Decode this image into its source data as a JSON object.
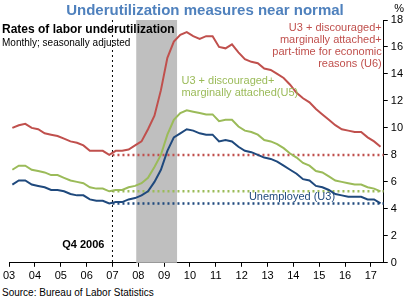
{
  "chart_data": {
    "type": "line",
    "title": "Underutilization  measures near normal",
    "subtitle": "Rates of labor underutilization",
    "annotations": {
      "frequency": "Monthly; seasonally adjusted",
      "source": "Source: Bureau of Labor Statistics"
    },
    "ylabel": "%",
    "x": [
      2003.125,
      2003.375,
      2003.625,
      2003.875,
      2004.125,
      2004.375,
      2004.625,
      2004.875,
      2005.125,
      2005.375,
      2005.625,
      2005.875,
      2006.125,
      2006.375,
      2006.625,
      2006.875,
      2007.125,
      2007.375,
      2007.625,
      2007.875,
      2008.125,
      2008.375,
      2008.625,
      2008.875,
      2009.125,
      2009.375,
      2009.625,
      2009.875,
      2010.125,
      2010.375,
      2010.625,
      2010.875,
      2011.125,
      2011.375,
      2011.625,
      2011.875,
      2012.125,
      2012.375,
      2012.625,
      2012.875,
      2013.125,
      2013.375,
      2013.625,
      2013.875,
      2014.125,
      2014.375,
      2014.625,
      2014.875,
      2015.125,
      2015.375,
      2015.625,
      2015.875,
      2016.125,
      2016.375,
      2016.625,
      2016.875,
      2017.125,
      2017.375
    ],
    "series": [
      {
        "name": "U3 + discouraged+ marginally attached+ part-time for economic reasons (U6)",
        "color": "#c0504d",
        "line_style": "solid",
        "values": [
          10.0,
          10.2,
          10.3,
          10.0,
          9.9,
          9.6,
          9.5,
          9.4,
          9.2,
          9.0,
          8.9,
          8.7,
          8.3,
          8.3,
          8.3,
          8.0,
          8.3,
          8.3,
          8.4,
          8.7,
          9.0,
          9.9,
          10.9,
          12.8,
          15.2,
          16.4,
          16.9,
          17.1,
          16.8,
          16.6,
          16.8,
          16.8,
          16.0,
          15.9,
          16.2,
          15.6,
          15.1,
          14.9,
          14.8,
          14.4,
          14.3,
          14.0,
          13.7,
          13.2,
          12.6,
          12.2,
          11.9,
          11.4,
          11.0,
          10.6,
          10.2,
          9.9,
          9.8,
          9.7,
          9.7,
          9.3,
          9.0,
          8.6
        ]
      },
      {
        "name": "U3 + discouraged+ marginally attached(U5)",
        "color": "#9bbb59",
        "line_style": "solid",
        "values": [
          6.9,
          7.2,
          7.2,
          6.9,
          6.8,
          6.7,
          6.5,
          6.5,
          6.3,
          6.1,
          6.0,
          5.9,
          5.6,
          5.5,
          5.5,
          5.3,
          5.4,
          5.4,
          5.6,
          5.7,
          5.9,
          6.3,
          7.1,
          8.0,
          9.5,
          10.6,
          11.1,
          11.3,
          11.2,
          11.1,
          11.0,
          11.0,
          10.5,
          10.6,
          10.6,
          10.1,
          9.8,
          9.7,
          9.5,
          9.1,
          9.0,
          8.8,
          8.5,
          8.1,
          7.8,
          7.4,
          7.2,
          6.8,
          6.7,
          6.4,
          6.1,
          6.0,
          5.9,
          5.8,
          5.8,
          5.6,
          5.5,
          5.3
        ]
      },
      {
        "name": "Unemployed (U3)",
        "color": "#1f497d",
        "line_style": "solid",
        "values": [
          5.8,
          6.1,
          6.1,
          5.8,
          5.7,
          5.6,
          5.4,
          5.4,
          5.3,
          5.1,
          5.0,
          5.0,
          4.7,
          4.6,
          4.6,
          4.4,
          4.5,
          4.5,
          4.7,
          4.8,
          5.0,
          5.3,
          6.0,
          6.9,
          8.3,
          9.3,
          9.6,
          9.9,
          9.8,
          9.6,
          9.5,
          9.5,
          9.0,
          9.1,
          9.0,
          8.6,
          8.3,
          8.2,
          8.0,
          7.8,
          7.7,
          7.5,
          7.2,
          6.9,
          6.6,
          6.2,
          6.1,
          5.7,
          5.6,
          5.4,
          5.1,
          5.0,
          4.9,
          4.9,
          4.9,
          4.7,
          4.7,
          4.4
        ]
      }
    ],
    "reference_lines": [
      {
        "y": 8.0,
        "x": [
          2007.0,
          2017.5
        ],
        "color": "#c0504d",
        "line_style": "dotted"
      },
      {
        "y": 5.3,
        "x": [
          2007.0,
          2017.5
        ],
        "color": "#9bbb59",
        "line_style": "dotted"
      },
      {
        "y": 4.4,
        "x": [
          2007.0,
          2017.5
        ],
        "color": "#1f497d",
        "line_style": "dotted"
      }
    ],
    "marker_line": {
      "x": 2007.0,
      "label": "Q4 2006",
      "color": "#000000",
      "line_style": "dotted"
    },
    "shaded_band": {
      "x": [
        2007.92,
        2009.5
      ],
      "color": "#bfbfbf"
    },
    "xlim": [
      2003,
      2017.5
    ],
    "xticks": [
      {
        "value": 2003,
        "label": "03"
      },
      {
        "value": 2004,
        "label": "04"
      },
      {
        "value": 2005,
        "label": "05"
      },
      {
        "value": 2006,
        "label": "06"
      },
      {
        "value": 2007,
        "label": "07"
      },
      {
        "value": 2008,
        "label": "08"
      },
      {
        "value": 2009,
        "label": "09"
      },
      {
        "value": 2010,
        "label": "10"
      },
      {
        "value": 2011,
        "label": "11"
      },
      {
        "value": 2012,
        "label": "12"
      },
      {
        "value": 2013,
        "label": "13"
      },
      {
        "value": 2014,
        "label": "14"
      },
      {
        "value": 2015,
        "label": "15"
      },
      {
        "value": 2016,
        "label": "16"
      },
      {
        "value": 2017,
        "label": "17"
      }
    ],
    "ylim": [
      0,
      18
    ],
    "yticks": [
      0,
      2,
      4,
      6,
      8,
      10,
      12,
      14,
      16,
      18
    ],
    "grid": false
  }
}
